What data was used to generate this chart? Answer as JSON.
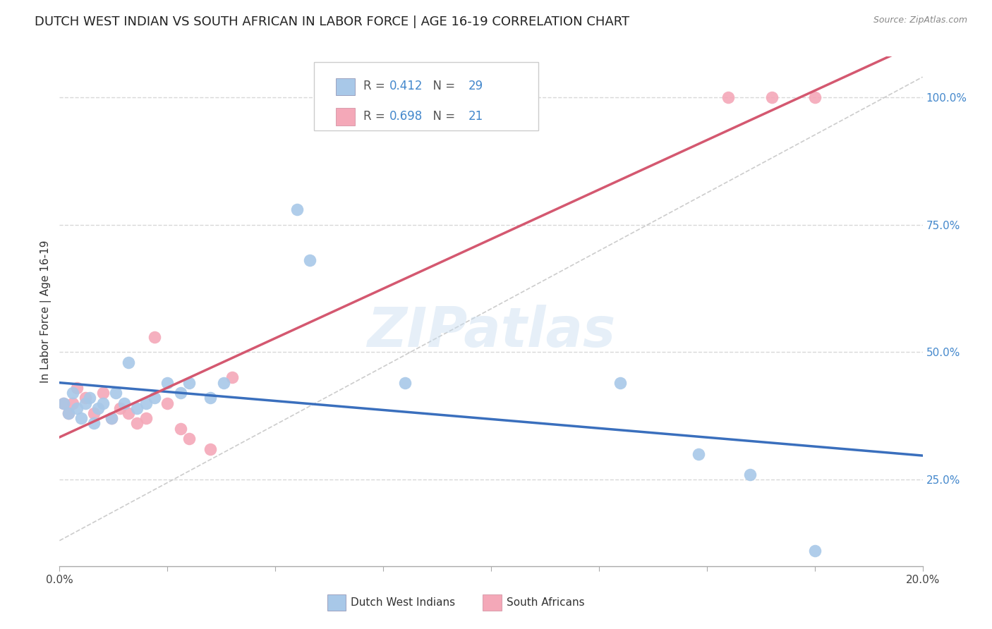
{
  "title": "DUTCH WEST INDIAN VS SOUTH AFRICAN IN LABOR FORCE | AGE 16-19 CORRELATION CHART",
  "source": "Source: ZipAtlas.com",
  "ylabel": "In Labor Force | Age 16-19",
  "xlim": [
    0.0,
    0.2
  ],
  "ylim": [
    0.08,
    1.08
  ],
  "xticks": [
    0.0,
    0.025,
    0.05,
    0.075,
    0.1,
    0.125,
    0.15,
    0.175,
    0.2
  ],
  "xticklabels": [
    "0.0%",
    "",
    "",
    "",
    "",
    "",
    "",
    "",
    "20.0%"
  ],
  "yticks_right": [
    0.25,
    0.5,
    0.75,
    1.0
  ],
  "ytick_right_labels": [
    "25.0%",
    "50.0%",
    "75.0%",
    "100.0%"
  ],
  "blue_r": "0.412",
  "blue_n": "29",
  "pink_r": "0.698",
  "pink_n": "21",
  "blue_color": "#a8c8e8",
  "pink_color": "#f4a8b8",
  "blue_line_color": "#3a6fbd",
  "pink_line_color": "#d45870",
  "ref_line_color": "#cccccc",
  "watermark": "ZIPatlas",
  "blue_x": [
    0.001,
    0.002,
    0.003,
    0.004,
    0.005,
    0.006,
    0.007,
    0.008,
    0.009,
    0.01,
    0.012,
    0.013,
    0.015,
    0.016,
    0.018,
    0.02,
    0.022,
    0.025,
    0.028,
    0.03,
    0.035,
    0.038,
    0.055,
    0.058,
    0.08,
    0.13,
    0.148,
    0.16,
    0.175
  ],
  "blue_y": [
    0.4,
    0.38,
    0.42,
    0.39,
    0.37,
    0.4,
    0.41,
    0.36,
    0.39,
    0.4,
    0.37,
    0.42,
    0.4,
    0.48,
    0.39,
    0.4,
    0.41,
    0.44,
    0.42,
    0.44,
    0.41,
    0.44,
    0.78,
    0.68,
    0.44,
    0.44,
    0.3,
    0.26,
    0.11
  ],
  "pink_x": [
    0.001,
    0.002,
    0.003,
    0.004,
    0.006,
    0.008,
    0.01,
    0.012,
    0.014,
    0.016,
    0.018,
    0.02,
    0.022,
    0.025,
    0.028,
    0.03,
    0.035,
    0.04,
    0.155,
    0.165,
    0.175
  ],
  "pink_y": [
    0.4,
    0.38,
    0.4,
    0.43,
    0.41,
    0.38,
    0.42,
    0.37,
    0.39,
    0.38,
    0.36,
    0.37,
    0.53,
    0.4,
    0.35,
    0.33,
    0.31,
    0.45,
    1.0,
    1.0,
    1.0
  ],
  "grid_color": "#d8d8d8",
  "background_color": "#ffffff",
  "title_fontsize": 13,
  "axis_label_color": "#333333",
  "right_axis_color": "#4488cc"
}
